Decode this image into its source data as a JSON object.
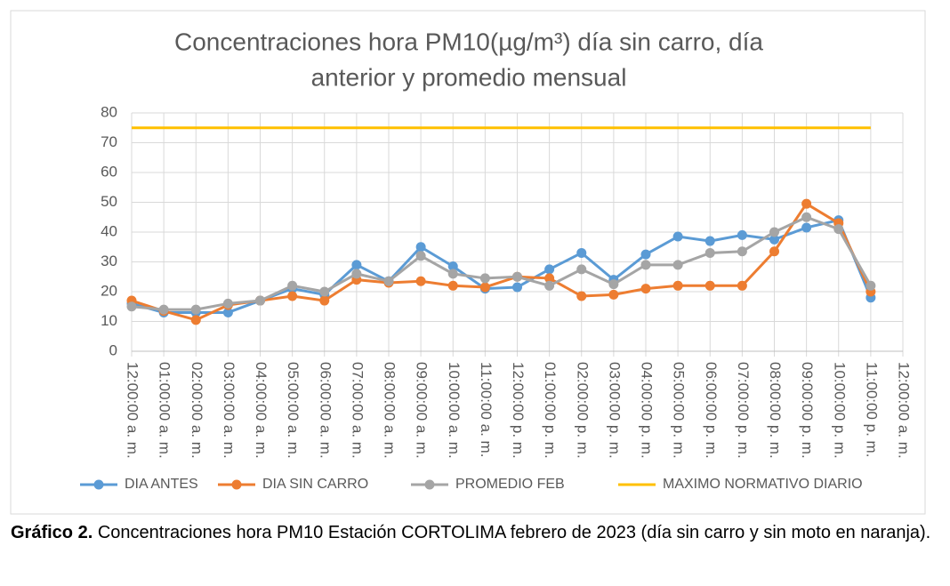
{
  "chart_data": {
    "type": "line",
    "title": [
      "Concentraciones hora PM10(µg/m³) día sin carro, día",
      "anterior y promedio mensual"
    ],
    "categories": [
      "12:00:00 a. m.",
      "01:00:00 a. m.",
      "02:00:00 a. m.",
      "03:00:00 a. m.",
      "04:00:00 a. m.",
      "05:00:00 a. m.",
      "06:00:00 a. m.",
      "07:00:00 a. m.",
      "08:00:00 a. m.",
      "09:00:00 a. m.",
      "10:00:00 a. m.",
      "11:00:00 a. m.",
      "12:00:00 p. m.",
      "01:00:00 p. m.",
      "02:00:00 p. m.",
      "03:00:00 p. m.",
      "04:00:00 p. m.",
      "05:00:00 p. m.",
      "06:00:00 p. m.",
      "07:00:00 p. m.",
      "08:00:00 p. m.",
      "09:00:00 p. m.",
      "10:00:00 p. m.",
      "11:00:00 p. m.",
      "12:00:00 a. m."
    ],
    "series": [
      {
        "name": "DIA ANTES",
        "color": "#5b9bd5",
        "markers": true,
        "values": [
          16,
          13,
          13,
          13,
          17,
          21,
          19,
          29,
          23.5,
          35,
          28.5,
          21,
          21.5,
          27.5,
          33,
          24,
          32.5,
          38.5,
          37,
          39,
          37.5,
          41.5,
          44,
          18,
          null
        ]
      },
      {
        "name": "DIA SIN CARRO",
        "color": "#ed7d31",
        "markers": true,
        "values": [
          17,
          13.5,
          10.5,
          15.5,
          17,
          18.5,
          17,
          24,
          23,
          23.5,
          22,
          21.5,
          25,
          24.5,
          18.5,
          19,
          21,
          22,
          22,
          22,
          33.5,
          49.5,
          43,
          20,
          null
        ]
      },
      {
        "name": "PROMEDIO FEB",
        "color": "#a5a5a5",
        "markers": true,
        "values": [
          15,
          14,
          14,
          16,
          17,
          22,
          20,
          26,
          23.5,
          32,
          26,
          24.5,
          25,
          22,
          27.5,
          22.5,
          29,
          29,
          33,
          33.5,
          40,
          45,
          41,
          22,
          null
        ]
      },
      {
        "name": "MAXIMO NORMATIVO DIARIO",
        "color": "#ffc000",
        "markers": false,
        "values": [
          75,
          75,
          75,
          75,
          75,
          75,
          75,
          75,
          75,
          75,
          75,
          75,
          75,
          75,
          75,
          75,
          75,
          75,
          75,
          75,
          75,
          75,
          75,
          75,
          null
        ]
      }
    ],
    "ylim": [
      0,
      80
    ],
    "yticks": [
      0,
      10,
      20,
      30,
      40,
      50,
      60,
      70,
      80
    ],
    "grid": true,
    "legend": "bottom"
  },
  "caption": {
    "label": "Gráfico 2.",
    "text": "Concentraciones hora PM10 Estación CORTOLIMA febrero de 2023 (día sin carro y sin moto en naranja)."
  }
}
